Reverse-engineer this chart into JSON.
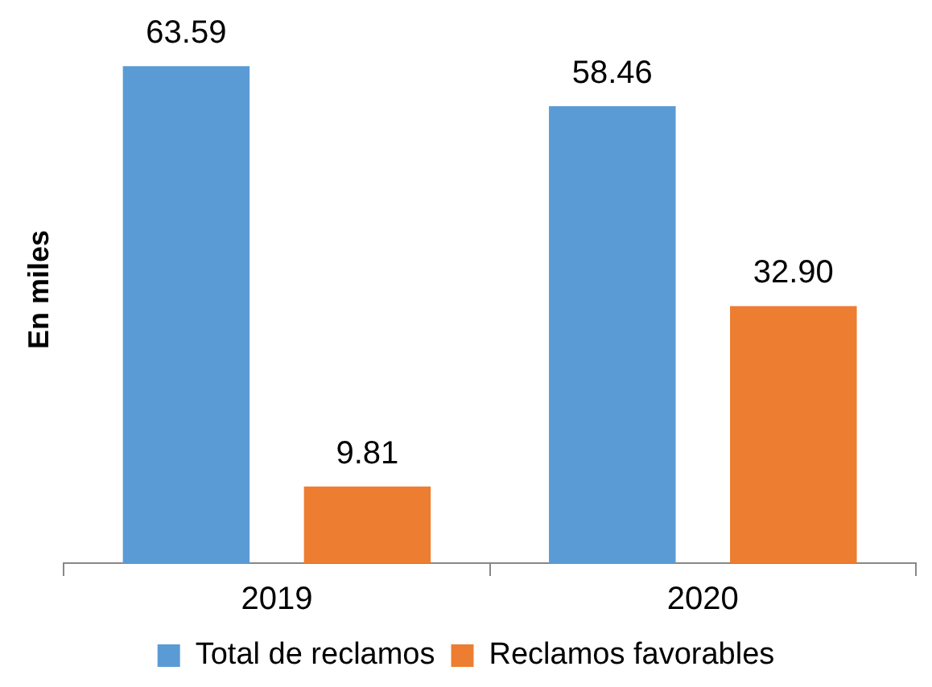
{
  "chart_data": {
    "type": "bar",
    "ylabel": "En miles",
    "categories": [
      "2019",
      "2020"
    ],
    "series": [
      {
        "name": "Total de reclamos",
        "color": "#5b9bd5",
        "values": [
          63.59,
          58.46
        ],
        "value_labels": [
          "63.59",
          "58.46"
        ]
      },
      {
        "name": "Reclamos favorables",
        "color": "#ed7d31",
        "values": [
          9.81,
          32.9
        ],
        "value_labels": [
          "9.81",
          "32.90"
        ]
      }
    ],
    "legend": "bottom",
    "grid": false
  }
}
